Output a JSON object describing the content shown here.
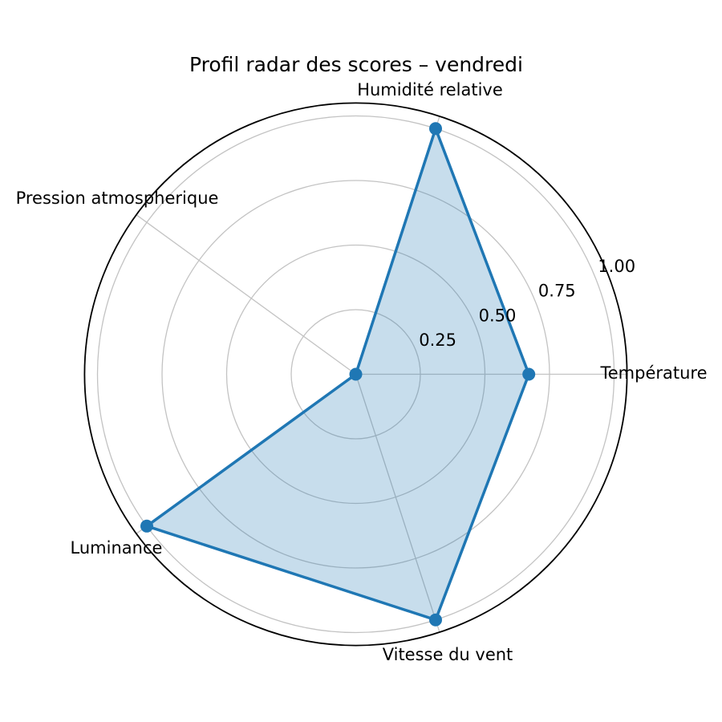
{
  "chart_data": {
    "type": "radar",
    "title": "Profil radar des scores – vendredi",
    "categories": [
      "Température",
      "Humidité relative",
      "Pression atmospherique",
      "Luminance",
      "Vitesse du vent"
    ],
    "values": [
      0.67,
      1.0,
      0.0,
      1.0,
      1.0
    ],
    "axes_angles_deg": [
      0,
      72,
      144,
      216,
      288
    ],
    "radial_ticks": [
      0.25,
      0.5,
      0.75,
      1.0
    ],
    "radial_tick_labels": [
      "0.25",
      "0.50",
      "0.75",
      "1.00"
    ],
    "rlim": [
      0,
      1.05
    ],
    "grid": true,
    "legend": "none",
    "colors": {
      "line": "#1f77b4",
      "fill": "rgba(31, 119, 180, 0.25)",
      "grid": "#c3c3c3",
      "spine": "#000000",
      "text": "#000000"
    }
  }
}
